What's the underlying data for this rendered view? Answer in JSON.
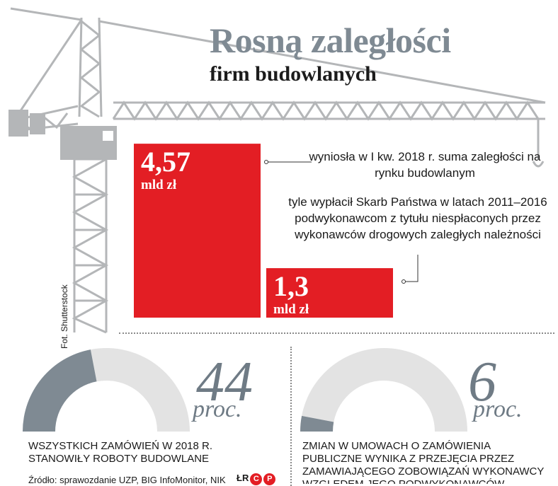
{
  "title": "Rosną zaległości",
  "subtitle": "firm budowlanych",
  "photo_credit": "Fot. Shutterstock",
  "colors": {
    "bar": "#e31e24",
    "gauge_fill": "#7f8a93",
    "gauge_rest": "#e3e3e3",
    "crane": "#b4b6b8"
  },
  "chart_data": [
    {
      "type": "bar",
      "categories": [
        "suma zaległości",
        "wypłaty Skarbu Państwa"
      ],
      "values": [
        4.57,
        1.3
      ],
      "value_labels": [
        "4,57",
        "1,3"
      ],
      "unit": "mld zł",
      "descriptions": [
        "wyniosła w I kw. 2018 r. suma zaległości na rynku budowlanym",
        "tyle wypłacił Skarb Państwa w latach 2011–2016 podwykonawcom z tytułu niespłaconych przez wykonawców drogowych zaległych należności"
      ]
    },
    {
      "type": "pie",
      "value": 44,
      "max": 100,
      "value_label": "44",
      "unit": "proc.",
      "caption": "WSZYSTKICH ZAMÓWIEŃ W 2018 R. STANOWIŁY ROBOTY BUDOWLANE"
    },
    {
      "type": "pie",
      "value": 6,
      "max": 100,
      "value_label": "6",
      "unit": "proc.",
      "caption": "ZMIAN W UMOWACH O ZAMÓWIENIA PUBLICZNE WYNIKA Z PRZEJĘCIA PRZEZ ZAMAWIAJĄCEGO ZOBOWIĄZAŃ WYKONAWCY WZGLĘDEM JEGO PODWYKONAWCÓW"
    }
  ],
  "source": "Źródło: sprawozdanie UZP, BIG InfoMonitor, NIK",
  "logo": {
    "text": "ŁR",
    "mark": "C",
    "mark2": "P"
  }
}
